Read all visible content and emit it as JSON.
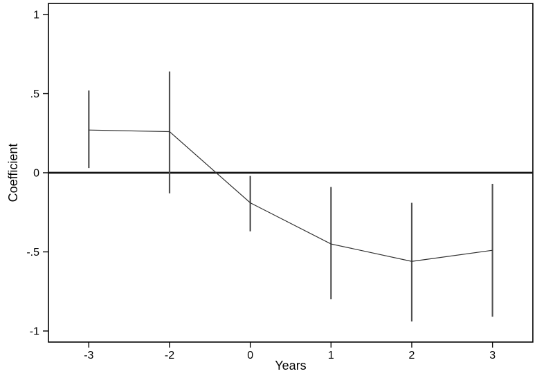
{
  "chart_data": {
    "type": "line",
    "subtype": "event-study-coefficient-plot",
    "title": "",
    "xlabel": "Years",
    "ylabel": "Coefficient",
    "x_categories": [
      "-3",
      "-2",
      "0",
      "1",
      "2",
      "3"
    ],
    "series": [
      {
        "name": "coefficient",
        "values": [
          0.27,
          0.26,
          -0.19,
          -0.45,
          -0.56,
          -0.49
        ],
        "ci_low": [
          0.03,
          -0.13,
          -0.37,
          -0.8,
          -0.94,
          -0.91
        ],
        "ci_high": [
          0.52,
          0.64,
          -0.02,
          -0.09,
          -0.19,
          -0.07
        ]
      }
    ],
    "y_ticks": [
      {
        "value": 1,
        "label": "1"
      },
      {
        "value": 0.5,
        "label": ".5"
      },
      {
        "value": 0,
        "label": "0"
      },
      {
        "value": -0.5,
        "label": "-.5"
      },
      {
        "value": -1,
        "label": "-1"
      }
    ],
    "ylim": [
      -1.07,
      1.07
    ],
    "reference_line_y": 0,
    "grid": false,
    "legend": "none",
    "markers": "none",
    "colors": {
      "background": "#ffffff",
      "axis": "#000000",
      "text": "#000000",
      "ci_bar": "#4f4f4f",
      "line": "#303030",
      "reference_line": "#141414"
    }
  }
}
